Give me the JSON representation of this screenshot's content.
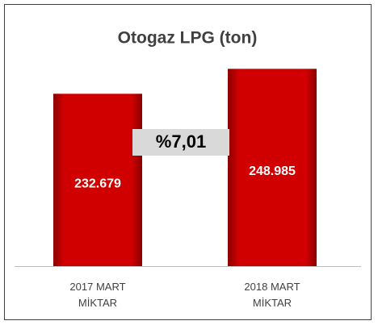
{
  "chart_data": {
    "type": "bar",
    "title": "Otogaz LPG (ton)",
    "categories": [
      "2017 MART MİKTAR",
      "2018 MART MİKTAR"
    ],
    "values": [
      232679,
      248985
    ],
    "value_labels": [
      "232.679",
      "248.985"
    ],
    "color": "#c00000",
    "ylim": [
      120000,
      275000
    ],
    "annotation": "%7,01"
  }
}
